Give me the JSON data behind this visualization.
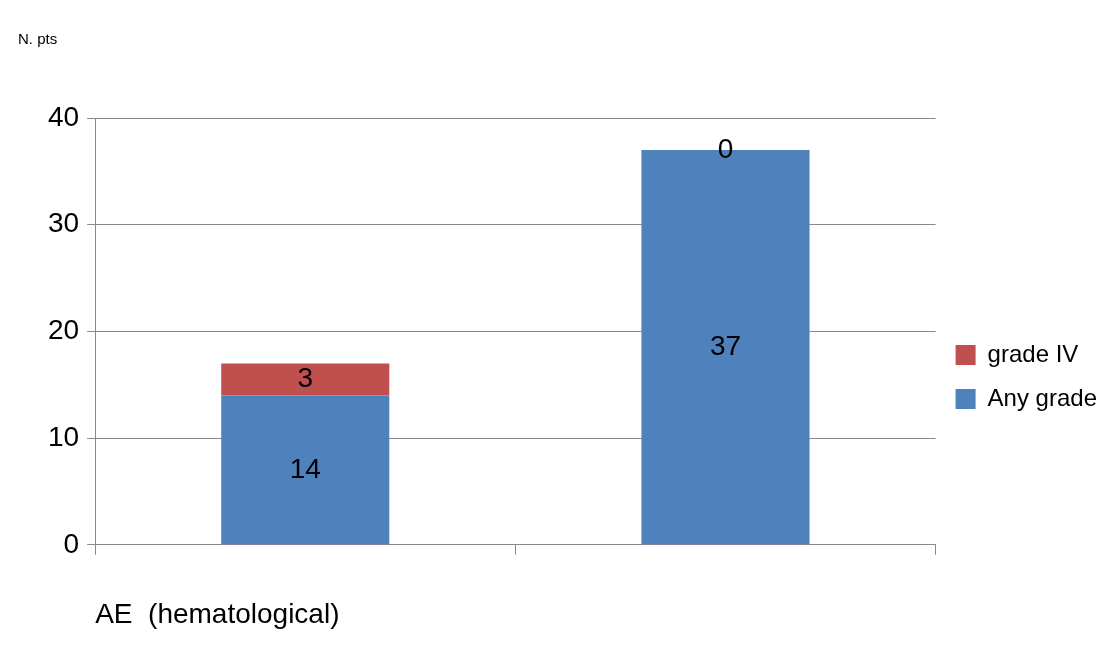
{
  "chart_data": {
    "type": "bar",
    "ylabel": "N. pts",
    "xlabel": "AE  (hematological)",
    "categories": [
      null,
      null
    ],
    "series": [
      {
        "name": "Any grade",
        "color": "#4f81bd",
        "values": [
          14,
          37
        ]
      },
      {
        "name": "grade IV",
        "color": "#c0504d",
        "values": [
          3,
          0
        ]
      }
    ],
    "stacked": true,
    "ylim": [
      0,
      40
    ],
    "yticks": [
      0,
      10,
      20,
      30,
      40
    ],
    "grid": "y",
    "legend": "right",
    "data_labels": true
  }
}
